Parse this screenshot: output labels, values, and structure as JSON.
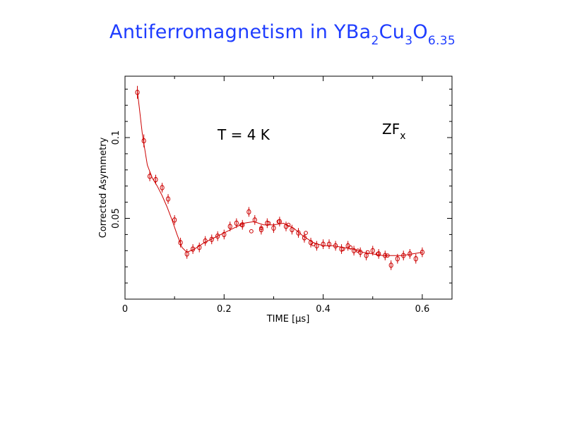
{
  "slide": {
    "title_main": "Antiferromagnetism in YBa",
    "title_sub1": "2",
    "title_mid1": "Cu",
    "title_sub2": "3",
    "title_mid2": "O",
    "title_sub3": "6.35",
    "title_color": "#1f3dff"
  },
  "chart_data": {
    "type": "scatter",
    "xlabel": "TIME [μs]",
    "ylabel": "Corrected Asymmetry",
    "xlim": [
      0,
      0.66
    ],
    "ylim": [
      0.0,
      0.138
    ],
    "x_ticks": [
      0,
      0.2,
      0.4,
      0.6
    ],
    "x_tick_labels": [
      "0",
      "0.2",
      "0.4",
      "0.6"
    ],
    "y_ticks": [
      0.05,
      0.1
    ],
    "y_tick_labels": [
      "0.05",
      "0.1"
    ],
    "y_tick_labels_rotated": true,
    "grid": false,
    "annotations": [
      {
        "text": "T = 4 K"
      },
      {
        "text": "ZF",
        "sub": "x"
      }
    ],
    "series": [
      {
        "style": "points-with-errorbars",
        "color": "#cc0000",
        "x": [
          0.025,
          0.038,
          0.05,
          0.062,
          0.075,
          0.087,
          0.1,
          0.112,
          0.125,
          0.137,
          0.15,
          0.162,
          0.175,
          0.187,
          0.2,
          0.212,
          0.225,
          0.237,
          0.25,
          0.262,
          0.275,
          0.287,
          0.3,
          0.312,
          0.325,
          0.337,
          0.35,
          0.362,
          0.375,
          0.387,
          0.4,
          0.412,
          0.425,
          0.437,
          0.45,
          0.462,
          0.475,
          0.487,
          0.5,
          0.512,
          0.525,
          0.537,
          0.55,
          0.562,
          0.575,
          0.587,
          0.6
        ],
        "y": [
          0.128,
          0.098,
          0.076,
          0.074,
          0.069,
          0.062,
          0.049,
          0.035,
          0.028,
          0.031,
          0.032,
          0.036,
          0.037,
          0.039,
          0.04,
          0.045,
          0.047,
          0.046,
          0.054,
          0.049,
          0.043,
          0.047,
          0.044,
          0.048,
          0.045,
          0.043,
          0.041,
          0.038,
          0.035,
          0.033,
          0.034,
          0.034,
          0.033,
          0.031,
          0.033,
          0.03,
          0.029,
          0.027,
          0.03,
          0.028,
          0.027,
          0.021,
          0.025,
          0.027,
          0.028,
          0.025,
          0.029
        ],
        "err": [
          0.004,
          0.004,
          0.003,
          0.003,
          0.003,
          0.003,
          0.003,
          0.003,
          0.003,
          0.003,
          0.003,
          0.003,
          0.003,
          0.003,
          0.003,
          0.003,
          0.003,
          0.003,
          0.003,
          0.003,
          0.003,
          0.003,
          0.003,
          0.003,
          0.003,
          0.003,
          0.003,
          0.003,
          0.003,
          0.003,
          0.003,
          0.003,
          0.003,
          0.003,
          0.003,
          0.003,
          0.003,
          0.003,
          0.003,
          0.003,
          0.003,
          0.003,
          0.003,
          0.003,
          0.003,
          0.003,
          0.003
        ]
      },
      {
        "style": "points-open-circles",
        "color": "#cc0000",
        "x": [
          0.235,
          0.255,
          0.275,
          0.29,
          0.31,
          0.33,
          0.365,
          0.38,
          0.44,
          0.455,
          0.47,
          0.49,
          0.51,
          0.53
        ],
        "y": [
          0.046,
          0.042,
          0.044,
          0.047,
          0.048,
          0.046,
          0.041,
          0.034,
          0.031,
          0.032,
          0.03,
          0.029,
          0.028,
          0.027
        ]
      },
      {
        "style": "fit-line",
        "color": "#cc0000",
        "x": [
          0.025,
          0.035,
          0.045,
          0.055,
          0.065,
          0.075,
          0.085,
          0.095,
          0.105,
          0.115,
          0.125,
          0.14,
          0.16,
          0.18,
          0.2,
          0.22,
          0.24,
          0.26,
          0.28,
          0.3,
          0.32,
          0.34,
          0.36,
          0.38,
          0.4,
          0.42,
          0.44,
          0.46,
          0.48,
          0.5,
          0.52,
          0.54,
          0.56,
          0.58,
          0.6
        ],
        "y": [
          0.129,
          0.102,
          0.083,
          0.075,
          0.07,
          0.064,
          0.057,
          0.049,
          0.04,
          0.032,
          0.029,
          0.031,
          0.035,
          0.038,
          0.041,
          0.044,
          0.047,
          0.048,
          0.046,
          0.046,
          0.047,
          0.044,
          0.039,
          0.035,
          0.033,
          0.033,
          0.032,
          0.031,
          0.029,
          0.028,
          0.027,
          0.027,
          0.027,
          0.028,
          0.029
        ]
      }
    ]
  }
}
